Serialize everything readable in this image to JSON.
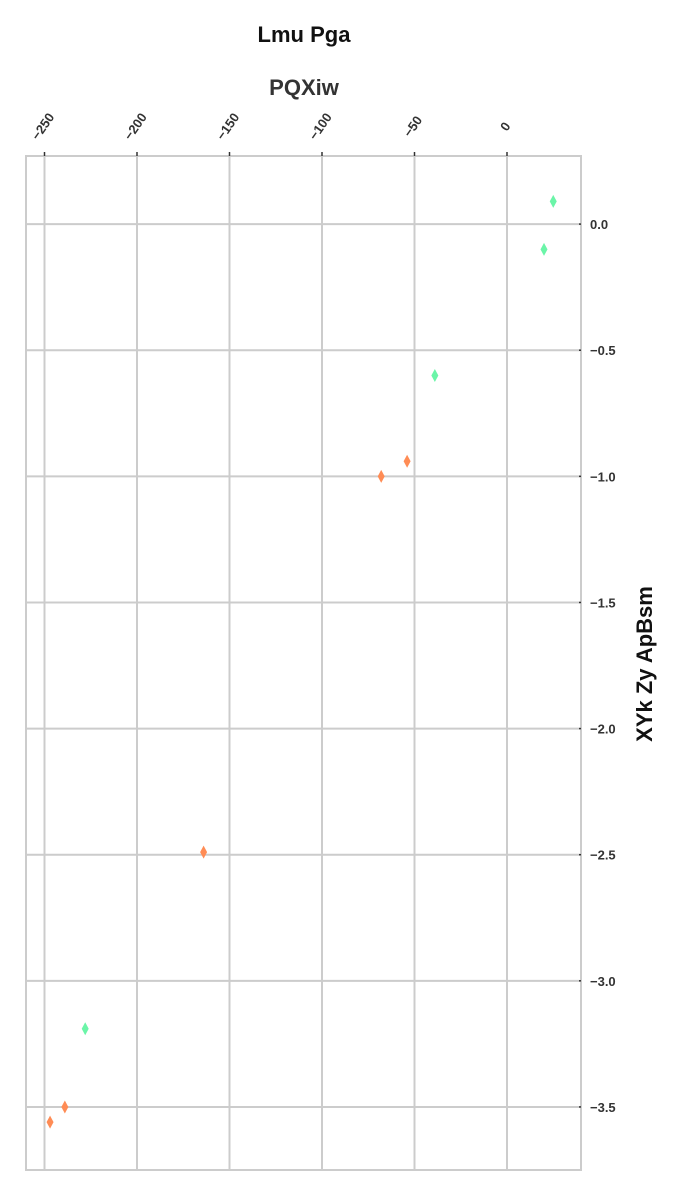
{
  "chart_data": {
    "type": "scatter",
    "title": "Lmu Pga",
    "xlabel": "PQXiw",
    "ylabel": "XYk Zy ApBsm",
    "x_axis_position": "top",
    "y_axis_position": "right",
    "xlim": [
      -260,
      40
    ],
    "ylim": [
      -3.75,
      0.27
    ],
    "x_ticks": [
      -250,
      -200,
      -150,
      -100,
      -50,
      0
    ],
    "x_tick_labels": [
      "−250",
      "−200",
      "−150",
      "−100",
      "−50",
      "0"
    ],
    "y_ticks": [
      0.0,
      -0.5,
      -1.0,
      -1.5,
      -2.0,
      -2.5,
      -3.0,
      -3.5
    ],
    "y_tick_labels": [
      "0.0",
      "−0.5",
      "−1.0",
      "−1.5",
      "−2.0",
      "−2.5",
      "−3.0",
      "−3.5"
    ],
    "grid": true,
    "marker": "thin-diamond",
    "series": [
      {
        "color": "#6bf5a8",
        "points": [
          {
            "x": 25,
            "y": 0.09
          },
          {
            "x": 20,
            "y": -0.1
          },
          {
            "x": -39,
            "y": -0.6
          },
          {
            "x": -228,
            "y": -3.19
          }
        ]
      },
      {
        "color": "#ff8c55",
        "points": [
          {
            "x": -54,
            "y": -0.94
          },
          {
            "x": -68,
            "y": -1.0
          },
          {
            "x": -164,
            "y": -2.49
          },
          {
            "x": -239,
            "y": -3.5
          },
          {
            "x": -247,
            "y": -3.56
          }
        ]
      }
    ]
  }
}
